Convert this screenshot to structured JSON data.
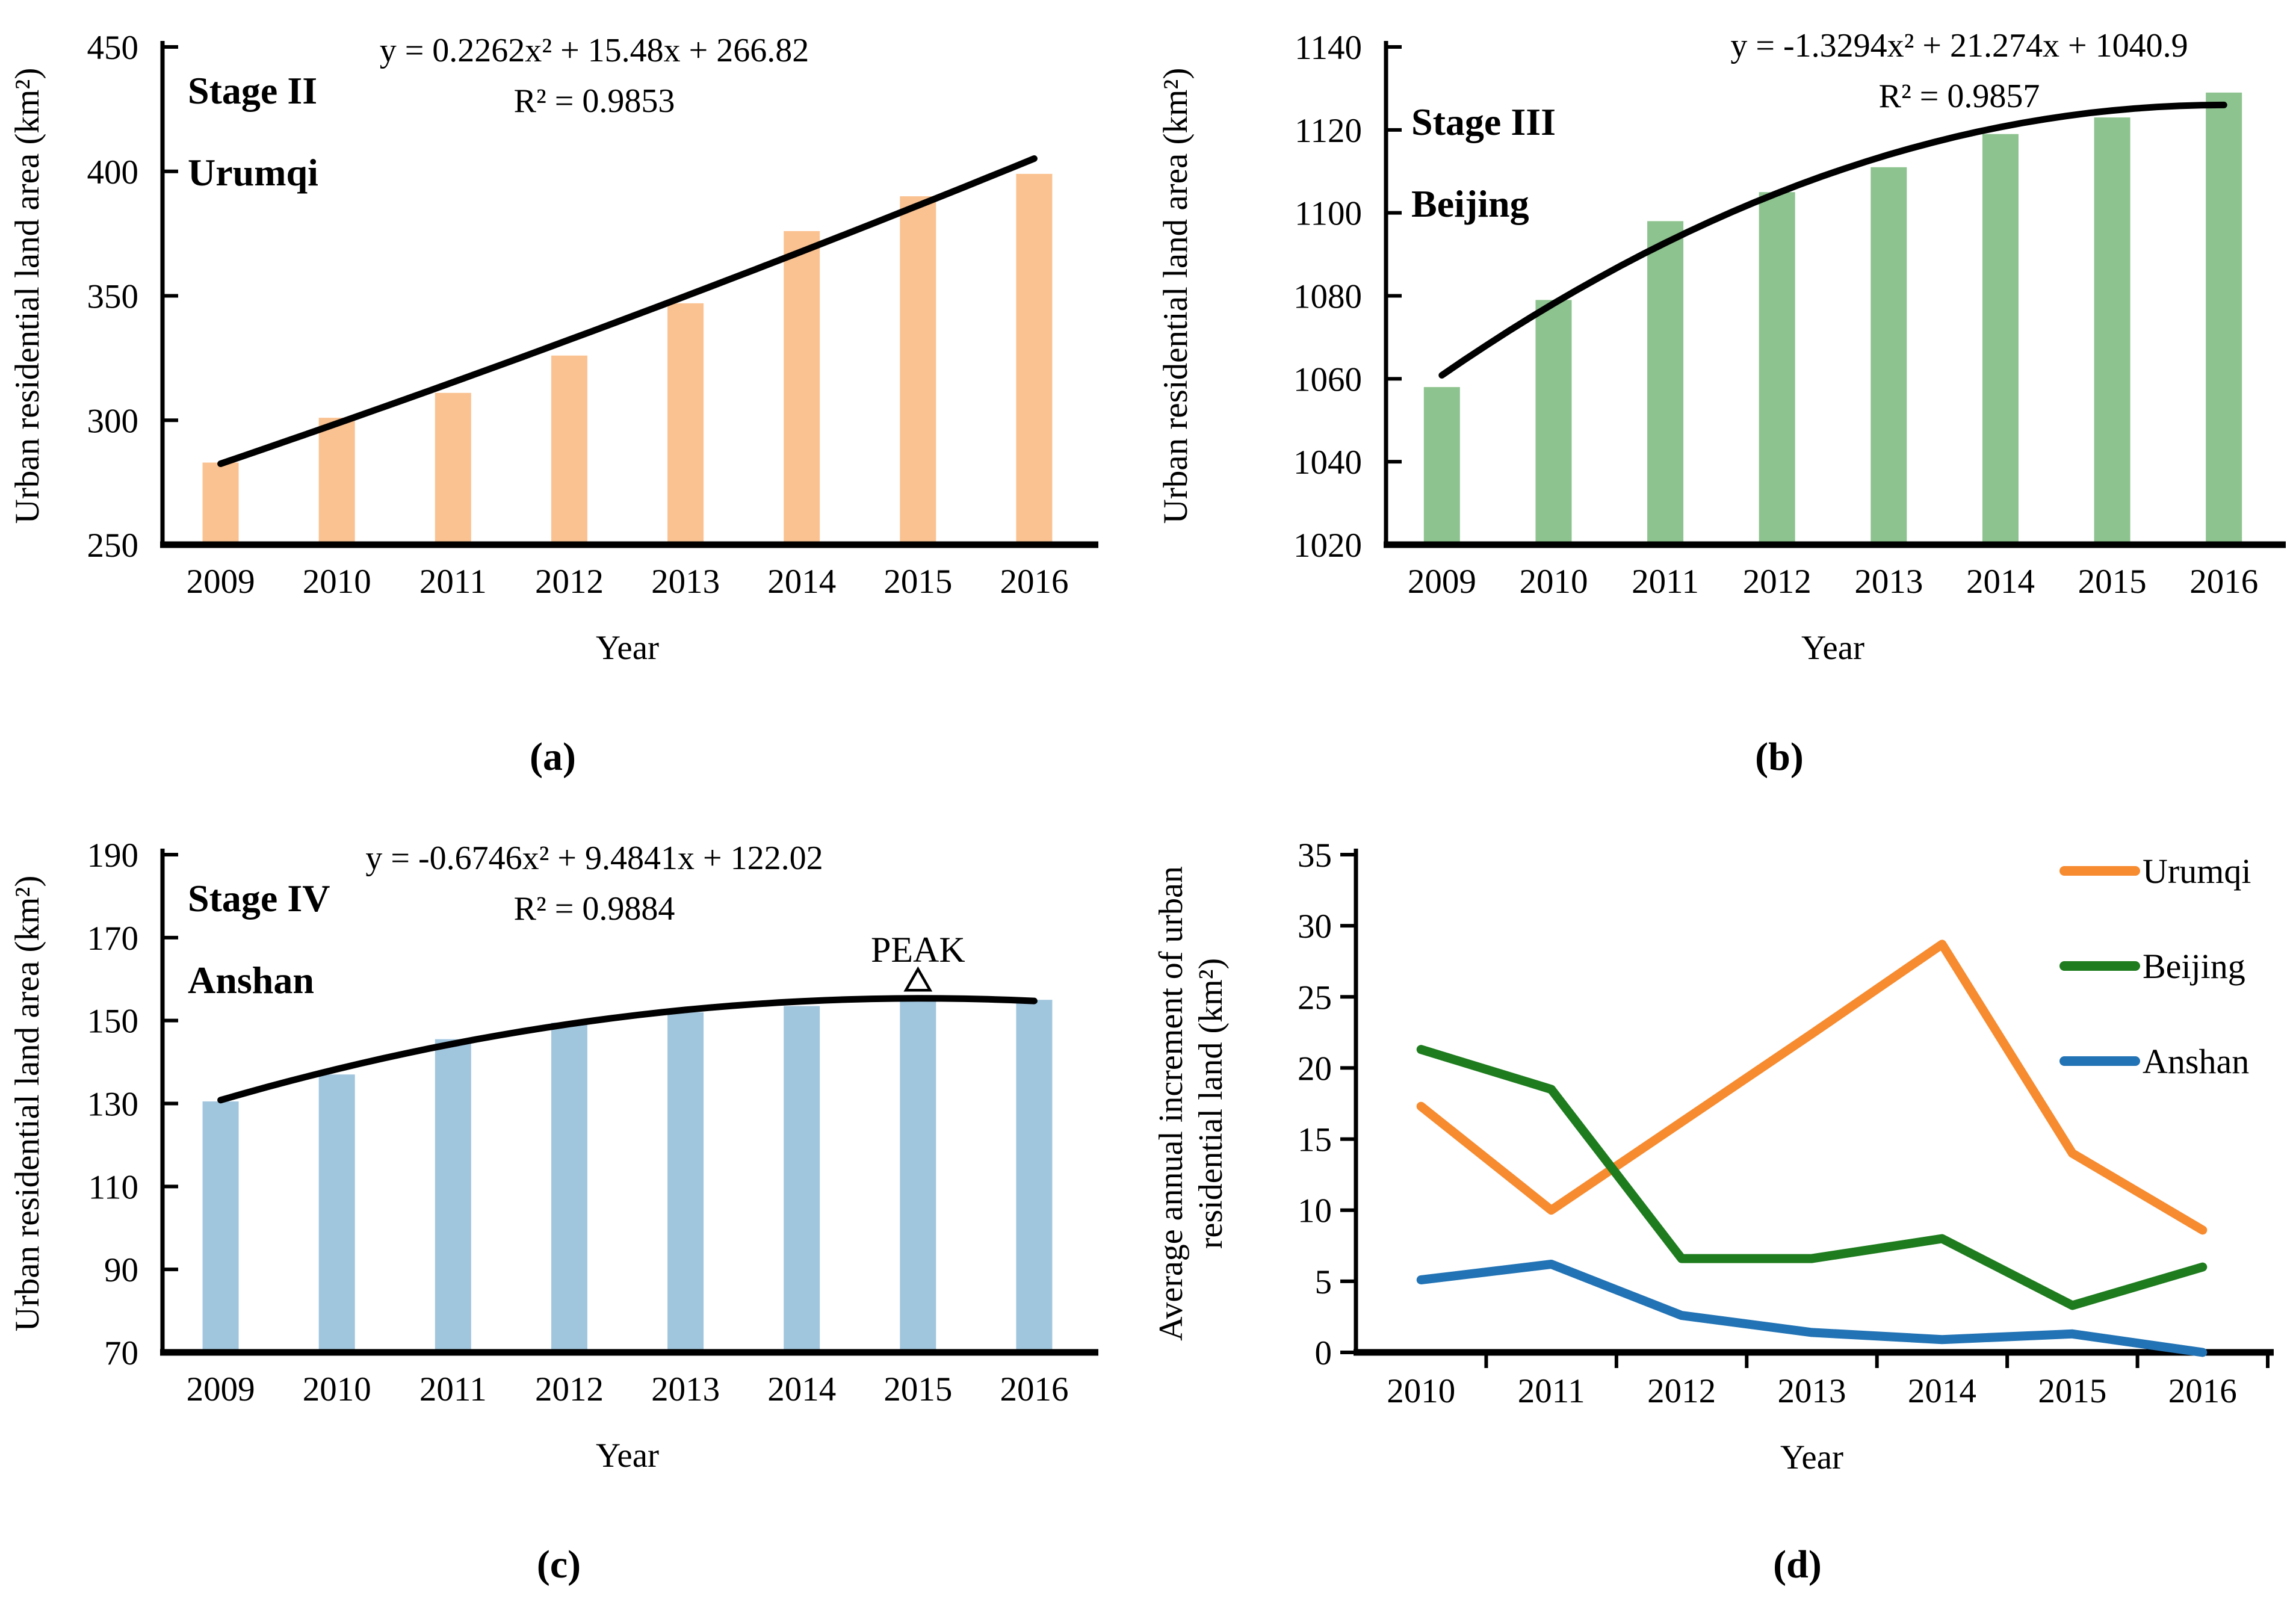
{
  "figure": {
    "background": "#ffffff",
    "axis_color": "#000000",
    "text_color": "#000000"
  },
  "captions": {
    "a": "(a)",
    "b": "(b)",
    "c": "(c)",
    "d": "(d)"
  },
  "chart_data": [
    {
      "key": "a",
      "type": "bar",
      "stage": "Stage II",
      "city": "Urumqi",
      "equation_line1": "y = 0.2262x² + 15.48x + 266.82",
      "equation_line2": "R² = 0.9853",
      "trend_coeffs": {
        "a2": 0.2262,
        "a1": 15.48,
        "a0": 266.82
      },
      "categories": [
        "2009",
        "2010",
        "2011",
        "2012",
        "2013",
        "2014",
        "2015",
        "2016"
      ],
      "values": [
        283,
        301,
        311,
        326,
        347,
        376,
        390,
        399
      ],
      "xlabel": "Year",
      "ylabel": "Urban residential land area (km²)",
      "ylim": [
        250,
        450
      ],
      "ytick_step": 50,
      "yticks": [
        250,
        300,
        350,
        400,
        450
      ],
      "bar_color": "#FBC291",
      "trend_color": "#000000",
      "grid": false
    },
    {
      "key": "b",
      "type": "bar",
      "stage": "Stage III",
      "city": "Beijing",
      "equation_line1": "y = -1.3294x² + 21.274x + 1040.9",
      "equation_line2": "R² = 0.9857",
      "trend_coeffs": {
        "a2": -1.3294,
        "a1": 21.274,
        "a0": 1040.9
      },
      "categories": [
        "2009",
        "2010",
        "2011",
        "2012",
        "2013",
        "2014",
        "2015",
        "2016"
      ],
      "values": [
        1058,
        1079,
        1098,
        1105,
        1111,
        1119,
        1123,
        1129
      ],
      "xlabel": "Year",
      "ylabel": "Urban residential land area (km²)",
      "ylim": [
        1020,
        1140
      ],
      "ytick_step": 20,
      "yticks": [
        1020,
        1040,
        1060,
        1080,
        1100,
        1120,
        1140
      ],
      "bar_color": "#8DC38E",
      "trend_color": "#000000",
      "grid": false
    },
    {
      "key": "c",
      "type": "bar",
      "stage": "Stage IV",
      "city": "Anshan",
      "equation_line1": "y = -0.6746x² + 9.4841x + 122.02",
      "equation_line2": "R² = 0.9884",
      "trend_coeffs": {
        "a2": -0.6746,
        "a1": 9.4841,
        "a0": 122.02
      },
      "categories": [
        "2009",
        "2010",
        "2011",
        "2012",
        "2013",
        "2014",
        "2015",
        "2016"
      ],
      "values": [
        130.5,
        137,
        145.5,
        149.5,
        152,
        153.5,
        155.5,
        155
      ],
      "xlabel": "Year",
      "ylabel": "Urban residential land area (km²)",
      "ylim": [
        70,
        190
      ],
      "ytick_step": 20,
      "yticks": [
        70,
        90,
        110,
        130,
        150,
        170,
        190
      ],
      "bar_color": "#A0C6DE",
      "trend_color": "#000000",
      "grid": false,
      "annotation": {
        "label": "PEAK",
        "marker": "open-triangle",
        "category_index": 6,
        "marker_value": 159.5,
        "label_value": 164.2
      }
    },
    {
      "key": "d",
      "type": "line",
      "categories": [
        "2010",
        "2011",
        "2012",
        "2013",
        "2014",
        "2015",
        "2016"
      ],
      "series": [
        {
          "name": "Urumqi",
          "color": "#F78B2F",
          "values": [
            17.3,
            10.0,
            16.2,
            22.4,
            28.7,
            14.0,
            8.6
          ]
        },
        {
          "name": "Beijing",
          "color": "#1E7C1E",
          "values": [
            21.3,
            18.5,
            6.6,
            6.6,
            8.0,
            3.3,
            6.0
          ]
        },
        {
          "name": "Anshan",
          "color": "#2273B5",
          "values": [
            5.1,
            6.2,
            2.6,
            1.4,
            0.9,
            1.3,
            0.0
          ]
        }
      ],
      "xlabel": "Year",
      "ylabel_line1": "Average annual increment of urban",
      "ylabel_line2": "residential  land (km²)",
      "ylim": [
        0,
        35
      ],
      "ytick_step": 5,
      "yticks": [
        0,
        5,
        10,
        15,
        20,
        25,
        30,
        35
      ],
      "legend_position": "top-right",
      "grid": false
    }
  ]
}
